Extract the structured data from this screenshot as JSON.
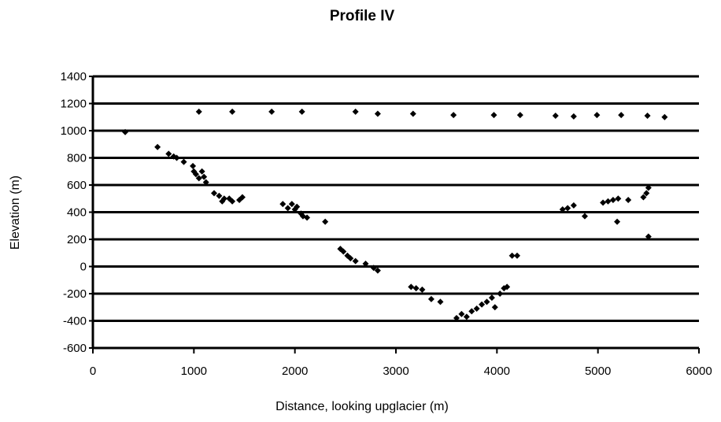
{
  "chart_data": {
    "type": "scatter",
    "title": "Profile IV",
    "xlabel": "Distance, looking upglacier (m)",
    "ylabel": "Elevation (m)",
    "xlim": [
      0,
      6000
    ],
    "xticks": [
      0,
      1000,
      2000,
      3000,
      4000,
      5000,
      6000
    ],
    "ylim": [
      -600,
      1400
    ],
    "yticks": [
      -600,
      -400,
      -200,
      0,
      200,
      400,
      600,
      800,
      1000,
      1200,
      1400
    ],
    "grid": true,
    "series": [
      {
        "color": "#000000",
        "x": [
          1050,
          1380,
          1770,
          2070,
          2600,
          2820,
          3170,
          3570,
          3970,
          4230,
          4580,
          4760,
          4990,
          5230,
          5490,
          5660,
          320,
          640,
          750,
          800,
          830,
          900,
          990,
          1000,
          1020,
          1050,
          1080,
          1100,
          1120,
          1200,
          1250,
          1280,
          1300,
          1350,
          1380,
          1450,
          1480,
          1880,
          1930,
          1970,
          2000,
          2020,
          2060,
          2080,
          2120,
          2300,
          2450,
          2480,
          2520,
          2550,
          2600,
          2700,
          2780,
          2820,
          3150,
          3200,
          3260,
          3350,
          3440,
          3600,
          3650,
          3700,
          3750,
          3800,
          3850,
          3900,
          3950,
          3980,
          4030,
          4070,
          4100,
          4150,
          4200,
          4650,
          4700,
          4760,
          4870,
          5050,
          5100,
          5150,
          5200,
          5190,
          5300,
          5450,
          5480,
          5500,
          5500
        ],
        "y": [
          1140,
          1140,
          1140,
          1140,
          1140,
          1125,
          1125,
          1115,
          1115,
          1115,
          1110,
          1105,
          1115,
          1115,
          1110,
          1100,
          990,
          880,
          830,
          810,
          800,
          770,
          740,
          700,
          680,
          650,
          700,
          660,
          620,
          540,
          520,
          480,
          500,
          500,
          480,
          490,
          510,
          460,
          430,
          460,
          420,
          440,
          390,
          370,
          360,
          330,
          130,
          110,
          80,
          60,
          40,
          20,
          -10,
          -30,
          -150,
          -160,
          -170,
          -240,
          -260,
          -380,
          -350,
          -370,
          -330,
          -310,
          -280,
          -260,
          -230,
          -300,
          -200,
          -160,
          -150,
          80,
          80,
          420,
          430,
          450,
          370,
          470,
          480,
          490,
          500,
          330,
          490,
          510,
          540,
          580,
          220
        ]
      }
    ]
  }
}
